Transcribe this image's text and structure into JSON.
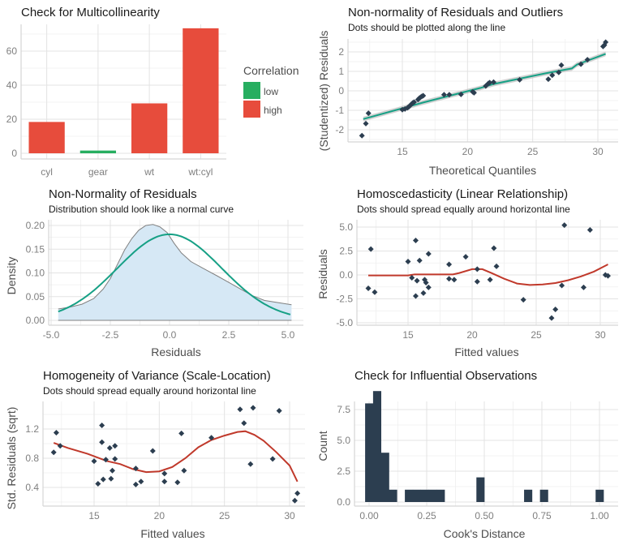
{
  "chart_data": [
    {
      "id": "multicollinearity",
      "type": "bar",
      "title": "Check for Multicollinearity",
      "subtitle": "",
      "xlabel": "",
      "ylabel": "",
      "categories": [
        "cyl",
        "gear",
        "wt",
        "wt:cyl"
      ],
      "values": [
        18.4,
        1.6,
        29.3,
        73.4
      ],
      "groups": [
        "high",
        "low",
        "high",
        "high"
      ],
      "ylim": [
        0,
        75
      ],
      "yticks": [
        0,
        20,
        40,
        60
      ],
      "ytick_labels": [
        "0",
        "20",
        "40",
        "60"
      ],
      "grid": true,
      "legend": {
        "title": "Correlation",
        "position": "right",
        "entries": [
          {
            "label": "low",
            "color": "#27ae60"
          },
          {
            "label": "high",
            "color": "#e74c3c"
          }
        ]
      }
    },
    {
      "id": "qq-plot",
      "type": "scatter",
      "title": "Non-normality of Residuals and Outliers",
      "subtitle": "Dots should be plotted along the line",
      "xlabel": "Theoretical Quantiles",
      "ylabel": "(Studentized) Residuals",
      "xlim": [
        11.3,
        31.3
      ],
      "ylim": [
        -2.6,
        2.7
      ],
      "xticks": [
        15,
        20,
        25,
        30
      ],
      "xtick_labels": [
        "15",
        "20",
        "25",
        "30"
      ],
      "yticks": [
        -2,
        -1,
        0,
        1,
        2
      ],
      "ytick_labels": [
        "-2",
        "-1",
        "0",
        "1",
        "2"
      ],
      "grid": true,
      "point_color": "#2c3e50",
      "line_color": "#16a085",
      "band_color": "#bfbfbf",
      "points": [
        [
          11.9,
          -2.3
        ],
        [
          12.2,
          -1.68
        ],
        [
          12.4,
          -1.15
        ],
        [
          15.0,
          -0.97
        ],
        [
          15.2,
          -0.93
        ],
        [
          15.4,
          -0.87
        ],
        [
          15.5,
          -0.82
        ],
        [
          15.6,
          -0.75
        ],
        [
          15.7,
          -0.68
        ],
        [
          15.8,
          -0.62
        ],
        [
          15.9,
          -0.58
        ],
        [
          16.2,
          -0.45
        ],
        [
          16.3,
          -0.38
        ],
        [
          16.4,
          -0.33
        ],
        [
          16.5,
          -0.28
        ],
        [
          16.6,
          -0.25
        ],
        [
          18.2,
          -0.2
        ],
        [
          18.6,
          -0.2
        ],
        [
          19.5,
          -0.18
        ],
        [
          20.4,
          -0.05
        ],
        [
          20.5,
          -0.1
        ],
        [
          21.4,
          0.25
        ],
        [
          21.6,
          0.38
        ],
        [
          21.7,
          0.42
        ],
        [
          22.0,
          0.45
        ],
        [
          24.0,
          0.57
        ],
        [
          26.2,
          0.6
        ],
        [
          26.5,
          0.8
        ],
        [
          27.0,
          0.95
        ],
        [
          27.2,
          1.32
        ],
        [
          28.7,
          1.37
        ],
        [
          29.2,
          1.6
        ],
        [
          30.4,
          2.28
        ],
        [
          30.5,
          2.35
        ],
        [
          30.6,
          2.5
        ]
      ],
      "fit_line": [
        [
          12.0,
          -1.45
        ],
        [
          16.6,
          -0.6
        ],
        [
          21.0,
          0.15
        ],
        [
          22.0,
          0.35
        ],
        [
          26.0,
          0.9
        ],
        [
          28.0,
          1.15
        ],
        [
          28.4,
          1.35
        ],
        [
          30.6,
          1.9
        ]
      ],
      "band_halfwidth": 0.12
    },
    {
      "id": "density",
      "type": "area",
      "title": "Non-Normality of Residuals",
      "subtitle": "Distribution should look like a normal curve",
      "xlabel": "Residuals",
      "ylabel": "Density",
      "xlim": [
        -5.2,
        5.5
      ],
      "ylim": [
        -0.008,
        0.21
      ],
      "xticks": [
        -5,
        -2.5,
        0,
        2.5,
        5
      ],
      "xtick_labels": [
        "-5.0",
        "-2.5",
        "0.0",
        "2.5",
        "5.0"
      ],
      "yticks": [
        0,
        0.05,
        0.1,
        0.15,
        0.2
      ],
      "ytick_labels": [
        "0.00",
        "0.05",
        "0.10",
        "0.15",
        "0.20"
      ],
      "grid": true,
      "fill_color": "#d6e8f5",
      "density_line_color": "#808080",
      "normal_line_color": "#16a085",
      "density_curve": [
        [
          -4.7,
          0.024
        ],
        [
          -4.2,
          0.028
        ],
        [
          -3.7,
          0.034
        ],
        [
          -3.2,
          0.046
        ],
        [
          -2.8,
          0.066
        ],
        [
          -2.5,
          0.088
        ],
        [
          -2.2,
          0.118
        ],
        [
          -1.9,
          0.148
        ],
        [
          -1.6,
          0.172
        ],
        [
          -1.3,
          0.19
        ],
        [
          -1.0,
          0.2
        ],
        [
          -0.7,
          0.202
        ],
        [
          -0.4,
          0.197
        ],
        [
          -0.1,
          0.185
        ],
        [
          0.2,
          0.162
        ],
        [
          0.5,
          0.142
        ],
        [
          0.9,
          0.124
        ],
        [
          1.4,
          0.11
        ],
        [
          2.0,
          0.094
        ],
        [
          2.5,
          0.08
        ],
        [
          3.0,
          0.066
        ],
        [
          3.5,
          0.052
        ],
        [
          4.0,
          0.042
        ],
        [
          4.5,
          0.038
        ],
        [
          5.15,
          0.033
        ]
      ],
      "normal_mean": 0.0,
      "normal_sd": 2.2,
      "normal_xrange": [
        -4.7,
        5.15
      ]
    },
    {
      "id": "homoscedasticity",
      "type": "scatter",
      "title": "Homoscedasticity (Linear Relationship)",
      "subtitle": "Dots should spread equally around horizontal line",
      "xlabel": "Fitted values",
      "ylabel": "Residuals",
      "xlim": [
        11.3,
        31.5
      ],
      "ylim": [
        -5.3,
        5.8
      ],
      "xticks": [
        15,
        20,
        25,
        30
      ],
      "xtick_labels": [
        "15",
        "20",
        "25",
        "30"
      ],
      "yticks": [
        -5,
        -2.5,
        0,
        2.5,
        5
      ],
      "ytick_labels": [
        "-5.0",
        "-2.5",
        "0.0",
        "2.5",
        "5.0"
      ],
      "grid": true,
      "point_color": "#2c3e50",
      "line_color": "#c0392b",
      "points": [
        [
          11.9,
          -1.4
        ],
        [
          12.1,
          2.7
        ],
        [
          12.4,
          -1.8
        ],
        [
          15.0,
          1.4
        ],
        [
          15.3,
          -0.3
        ],
        [
          15.6,
          3.6
        ],
        [
          15.7,
          -0.6
        ],
        [
          15.6,
          -2.2
        ],
        [
          15.9,
          1.5
        ],
        [
          16.2,
          -1.9
        ],
        [
          16.3,
          -0.5
        ],
        [
          16.4,
          -0.8
        ],
        [
          16.6,
          -1.3
        ],
        [
          16.6,
          2.2
        ],
        [
          18.2,
          1.1
        ],
        [
          18.2,
          -0.4
        ],
        [
          18.6,
          -0.5
        ],
        [
          19.5,
          1.9
        ],
        [
          20.4,
          0.6
        ],
        [
          20.4,
          -0.7
        ],
        [
          21.4,
          -0.5
        ],
        [
          21.7,
          2.8
        ],
        [
          21.9,
          0.9
        ],
        [
          24.0,
          -2.6
        ],
        [
          26.2,
          -4.5
        ],
        [
          26.5,
          -3.6
        ],
        [
          27.0,
          -1.1
        ],
        [
          27.2,
          5.2
        ],
        [
          28.7,
          -1.3
        ],
        [
          29.2,
          4.7
        ],
        [
          30.4,
          0.0
        ],
        [
          30.6,
          -0.1
        ]
      ],
      "smooth_line": [
        [
          11.9,
          -0.05
        ],
        [
          15.0,
          -0.05
        ],
        [
          15.5,
          0.05
        ],
        [
          18.5,
          0.05
        ],
        [
          19.0,
          0.2
        ],
        [
          20.0,
          0.6
        ],
        [
          20.8,
          0.6
        ],
        [
          21.5,
          0.2
        ],
        [
          22.5,
          -0.4
        ],
        [
          23.5,
          -0.9
        ],
        [
          24.5,
          -1.05
        ],
        [
          25.5,
          -1.0
        ],
        [
          26.5,
          -0.85
        ],
        [
          27.5,
          -0.55
        ],
        [
          28.5,
          -0.15
        ],
        [
          29.5,
          0.35
        ],
        [
          30.6,
          1.1
        ]
      ]
    },
    {
      "id": "scale-location",
      "type": "scatter",
      "title": "Homogeneity of Variance (Scale-Location)",
      "subtitle": "Dots should spread equally around horizontal line",
      "xlabel": "Fitted values",
      "ylabel": "Std. Residuals (sqrt)",
      "xlim": [
        11.3,
        31.6
      ],
      "ylim": [
        0.17,
        1.56
      ],
      "xticks": [
        15,
        20,
        25,
        30
      ],
      "xtick_labels": [
        "15",
        "20",
        "25",
        "30"
      ],
      "yticks": [
        0.4,
        0.8,
        1.2
      ],
      "ytick_labels": [
        "0.4",
        "0.8",
        "1.2"
      ],
      "grid": true,
      "point_color": "#2c3e50",
      "line_color": "#c0392b",
      "points": [
        [
          11.9,
          0.88
        ],
        [
          12.1,
          1.15
        ],
        [
          12.4,
          0.97
        ],
        [
          15.0,
          0.76
        ],
        [
          15.3,
          0.45
        ],
        [
          15.6,
          1.25
        ],
        [
          15.6,
          1.02
        ],
        [
          15.7,
          0.51
        ],
        [
          15.9,
          0.78
        ],
        [
          16.2,
          0.94
        ],
        [
          16.3,
          0.52
        ],
        [
          16.4,
          0.63
        ],
        [
          16.6,
          0.97
        ],
        [
          16.6,
          0.79
        ],
        [
          18.2,
          0.66
        ],
        [
          18.2,
          0.44
        ],
        [
          18.6,
          0.48
        ],
        [
          19.5,
          0.9
        ],
        [
          20.4,
          0.59
        ],
        [
          20.4,
          0.48
        ],
        [
          21.4,
          0.47
        ],
        [
          21.7,
          1.14
        ],
        [
          21.9,
          0.63
        ],
        [
          24.0,
          1.08
        ],
        [
          26.2,
          1.47
        ],
        [
          26.5,
          1.28
        ],
        [
          27.0,
          0.72
        ],
        [
          27.2,
          1.49
        ],
        [
          28.7,
          0.79
        ],
        [
          29.2,
          1.45
        ],
        [
          30.4,
          0.22
        ],
        [
          30.6,
          0.32
        ]
      ],
      "smooth_line": [
        [
          11.9,
          1.01
        ],
        [
          13.0,
          0.94
        ],
        [
          14.5,
          0.86
        ],
        [
          16.0,
          0.76
        ],
        [
          17.0,
          0.72
        ],
        [
          18.0,
          0.65
        ],
        [
          19.0,
          0.61
        ],
        [
          20.0,
          0.62
        ],
        [
          21.0,
          0.68
        ],
        [
          22.0,
          0.8
        ],
        [
          23.0,
          0.95
        ],
        [
          24.0,
          1.05
        ],
        [
          25.0,
          1.11
        ],
        [
          26.0,
          1.16
        ],
        [
          26.6,
          1.17
        ],
        [
          27.3,
          1.12
        ],
        [
          28.0,
          1.04
        ],
        [
          29.0,
          0.88
        ],
        [
          30.0,
          0.7
        ],
        [
          30.6,
          0.48
        ]
      ]
    },
    {
      "id": "influential",
      "type": "bar",
      "title": "Check for Influential Observations",
      "subtitle": "",
      "xlabel": "Cook's Distance",
      "ylabel": "Count",
      "xlim": [
        -0.06,
        1.08
      ],
      "ylim": [
        -0.45,
        9.4
      ],
      "xticks": [
        0,
        0.25,
        0.5,
        0.75,
        1
      ],
      "xtick_labels": [
        "0.00",
        "0.25",
        "0.50",
        "0.75",
        "1.00"
      ],
      "yticks": [
        0,
        2.5,
        5,
        7.5
      ],
      "ytick_labels": [
        "0.0",
        "2.5",
        "5.0",
        "7.5"
      ],
      "grid": true,
      "bar_color": "#2c3e50",
      "bin_width": 0.0345,
      "bins": [
        {
          "x": 0.0,
          "count": 8
        },
        {
          "x": 0.0345,
          "count": 9
        },
        {
          "x": 0.069,
          "count": 4
        },
        {
          "x": 0.1035,
          "count": 1
        },
        {
          "x": 0.1725,
          "count": 1
        },
        {
          "x": 0.207,
          "count": 1
        },
        {
          "x": 0.2415,
          "count": 1
        },
        {
          "x": 0.276,
          "count": 1
        },
        {
          "x": 0.3105,
          "count": 1
        },
        {
          "x": 0.483,
          "count": 2
        },
        {
          "x": 0.69,
          "count": 1
        },
        {
          "x": 0.759,
          "count": 1
        },
        {
          "x": 1.0005,
          "count": 1
        }
      ]
    }
  ]
}
